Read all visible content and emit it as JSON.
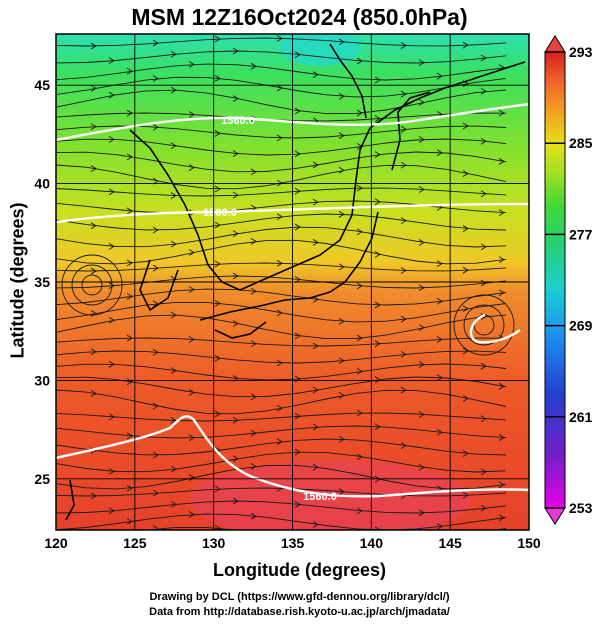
{
  "title": "MSM 12Z16Oct2024 (850.0hPa)",
  "xlabel": "Longitude (degrees)",
  "ylabel": "Latitude  (degrees)",
  "credit_line1": "Drawing by DCL (https://www.gfd-dennou.org/library/dcl/)",
  "credit_line2": "Data from http://database.rish.kyoto-u.ac.jp/arch/jmadata/",
  "map": {
    "lon_range": [
      120,
      150
    ],
    "lat_range": [
      22.4,
      47.6
    ],
    "lon_ticks": [
      "120",
      "125",
      "130",
      "135",
      "140",
      "145",
      "150"
    ],
    "lat_ticks": [
      "25",
      "30",
      "35",
      "40",
      "45"
    ],
    "contour_labels": [
      "1560.0",
      "1500.0",
      "1560.0"
    ]
  },
  "colorbar": {
    "unit_ticks": [
      "293",
      "285",
      "277",
      "269",
      "261",
      "253"
    ],
    "min": 253,
    "max": 293,
    "colors": [
      "#e600e6",
      "#8a1fd0",
      "#2030c8",
      "#1e78f0",
      "#18c8e0",
      "#20d8a0",
      "#30d040",
      "#9ce020",
      "#e0e018",
      "#f0b020",
      "#f07828",
      "#e83a22",
      "#d42020"
    ]
  }
}
